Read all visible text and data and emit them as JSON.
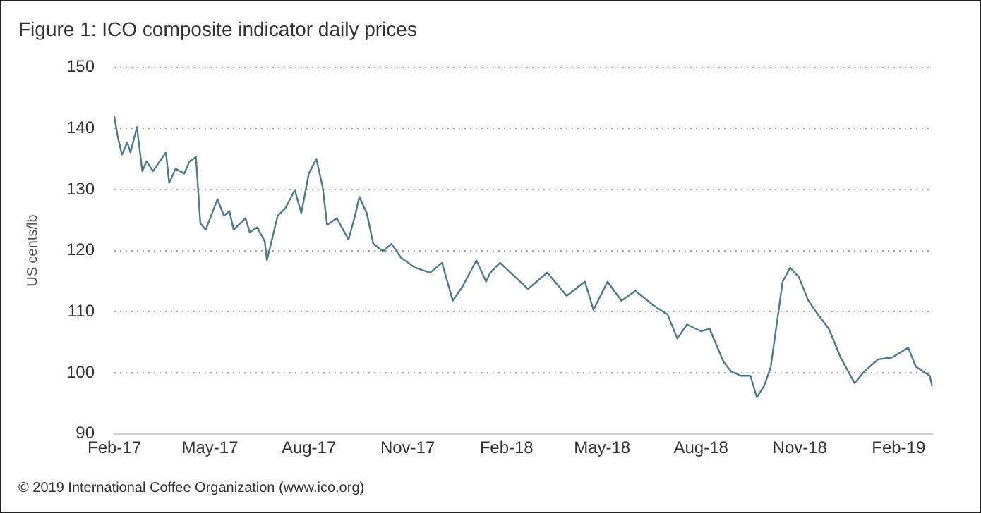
{
  "chart_data": {
    "type": "line",
    "title": "Figure 1: ICO composite indicator daily prices",
    "ylabel": "US cents/lb",
    "annotations": [
      "© 2019 International Coffee Organization (www.ico.org)"
    ],
    "x": [
      "2017-02-01",
      "2017-02-04",
      "2017-02-08",
      "2017-02-13",
      "2017-02-16",
      "2017-02-22",
      "2017-02-27",
      "2017-03-03",
      "2017-03-09",
      "2017-03-21",
      "2017-03-24",
      "2017-03-30",
      "2017-04-07",
      "2017-04-12",
      "2017-04-18",
      "2017-04-22",
      "2017-04-27",
      "2017-05-08",
      "2017-05-14",
      "2017-05-19",
      "2017-05-23",
      "2017-06-03",
      "2017-06-07",
      "2017-06-14",
      "2017-06-21",
      "2017-06-23",
      "2017-07-03",
      "2017-07-10",
      "2017-07-19",
      "2017-07-25",
      "2017-08-01",
      "2017-08-08",
      "2017-08-14",
      "2017-08-18",
      "2017-08-27",
      "2017-09-07",
      "2017-09-13",
      "2017-09-17",
      "2017-09-24",
      "2017-09-30",
      "2017-10-09",
      "2017-10-17",
      "2017-10-26",
      "2017-11-08",
      "2017-11-22",
      "2017-12-03",
      "2017-12-13",
      "2017-12-22",
      "2018-01-04",
      "2018-01-13",
      "2018-01-17",
      "2018-01-26",
      "2018-02-21",
      "2018-03-11",
      "2018-03-29",
      "2018-04-15",
      "2018-04-23",
      "2018-05-06",
      "2018-05-19",
      "2018-06-01",
      "2018-06-18",
      "2018-07-01",
      "2018-07-10",
      "2018-07-19",
      "2018-08-01",
      "2018-08-09",
      "2018-08-22",
      "2018-08-29",
      "2018-09-07",
      "2018-09-16",
      "2018-09-22",
      "2018-09-29",
      "2018-10-05",
      "2018-10-16",
      "2018-10-23",
      "2018-10-31",
      "2018-11-09",
      "2018-11-18",
      "2018-11-28",
      "2018-12-09",
      "2018-12-22",
      "2018-12-31",
      "2019-01-13",
      "2019-01-26",
      "2019-02-10",
      "2019-02-17",
      "2019-03-02",
      "2019-03-04"
    ],
    "series": [
      {
        "color": "#4e7a8c",
        "values": [
          141.9,
          138.8,
          135.7,
          137.7,
          136.1,
          140.2,
          133.0,
          134.6,
          133.0,
          136.1,
          131.1,
          133.4,
          132.6,
          134.6,
          135.3,
          124.5,
          123.4,
          128.4,
          125.7,
          126.5,
          123.4,
          125.3,
          123.0,
          123.8,
          121.5,
          118.4,
          125.7,
          126.9,
          129.9,
          126.1,
          132.6,
          135.0,
          130.3,
          124.2,
          125.3,
          121.8,
          125.7,
          128.8,
          126.1,
          121.1,
          119.9,
          121.1,
          118.8,
          117.2,
          116.4,
          118.0,
          111.8,
          114.1,
          118.4,
          114.9,
          116.4,
          118.0,
          113.7,
          116.4,
          112.6,
          114.9,
          110.3,
          114.9,
          111.8,
          113.4,
          111.0,
          109.5,
          105.6,
          107.9,
          106.8,
          107.2,
          101.8,
          100.2,
          99.5,
          99.5,
          96.0,
          97.9,
          101.0,
          114.9,
          117.2,
          115.7,
          111.8,
          109.5,
          107.2,
          102.5,
          98.3,
          100.2,
          102.2,
          102.5,
          104.1,
          101.0,
          99.5,
          97.9
        ]
      }
    ],
    "xlim": [
      "2017-02-01",
      "2019-03-05"
    ],
    "xticks": [
      {
        "value": "2017-02-01",
        "label": "Feb-17"
      },
      {
        "value": "2017-05-01",
        "label": "May-17"
      },
      {
        "value": "2017-08-01",
        "label": "Aug-17"
      },
      {
        "value": "2017-11-01",
        "label": "Nov-17"
      },
      {
        "value": "2018-02-01",
        "label": "Feb-18"
      },
      {
        "value": "2018-05-01",
        "label": "May-18"
      },
      {
        "value": "2018-08-01",
        "label": "Aug-18"
      },
      {
        "value": "2018-11-01",
        "label": "Nov-18"
      },
      {
        "value": "2019-02-01",
        "label": "Feb-19"
      }
    ],
    "ylim": [
      90,
      150
    ],
    "yticks": [
      90,
      100,
      110,
      120,
      130,
      140,
      150
    ],
    "grid": "y"
  }
}
